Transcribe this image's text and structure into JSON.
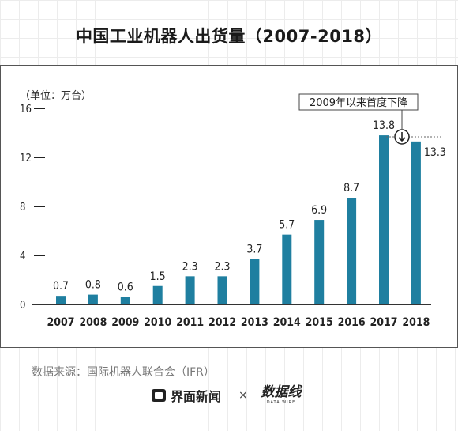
{
  "title": "中国工业机器人出货量（2007-2018）",
  "chart_data": {
    "type": "bar",
    "unit_label": "（单位：万台）",
    "categories": [
      "2007",
      "2008",
      "2009",
      "2010",
      "2011",
      "2012",
      "2013",
      "2014",
      "2015",
      "2016",
      "2017",
      "2018"
    ],
    "values": [
      0.7,
      0.8,
      0.6,
      1.5,
      2.3,
      2.3,
      3.7,
      5.7,
      6.9,
      8.7,
      13.8,
      13.3
    ],
    "value_labels": [
      "0.7",
      "0.8",
      "0.6",
      "1.5",
      "2.3",
      "2.3",
      "3.7",
      "5.7",
      "6.9",
      "8.7",
      "13.8",
      "13.3"
    ],
    "ylim": [
      0,
      16
    ],
    "yticks": [
      0,
      4,
      8,
      12,
      16
    ],
    "ytick_labels": [
      "0",
      "4",
      "8",
      "12",
      "16"
    ],
    "bar_color": "#1f7fa0",
    "annotation": "2009年以来首度下降",
    "grid": false
  },
  "source": "数据来源：国际机器人联合会（IFR）",
  "footer": {
    "brand1": "界面新闻",
    "separator": "×",
    "brand2": "数据线",
    "brand2_sub": "DATA WIRE"
  }
}
